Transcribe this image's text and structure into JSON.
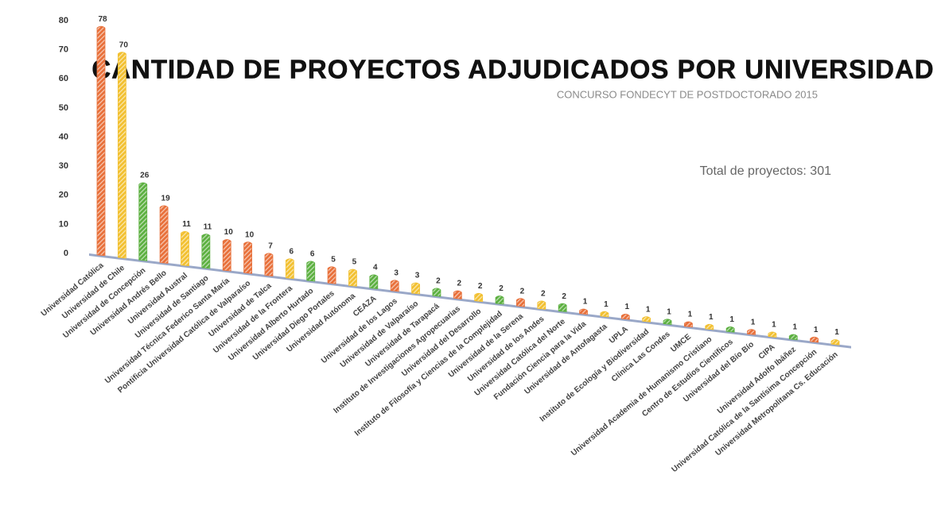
{
  "chart_data": {
    "type": "bar",
    "title": "CANTIDAD DE PROYECTOS ADJUDICADOS POR UNIVERSIDAD",
    "subtitle": "CONCURSO FONDECYT DE POSTDOCTORADO 2015",
    "annotation": "Total de proyectos: 301",
    "categories": [
      "Universidad Católica",
      "Universidad de Chile",
      "Universidad de Concepción",
      "Universidad Andrés Bello",
      "Universidad Austral",
      "Universidad de Santiago",
      "Universidad Técnica Federico Santa María",
      "Pontificia Universidad Católica de Valparaíso",
      "Universidad de Talca",
      "Universidad de la Frontera",
      "Universidad Alberto Hurtado",
      "Universidad Diego Portales",
      "Universidad Autónoma",
      "CEAZA",
      "Universidad de los Lagos",
      "Universidad de Valparaíso",
      "Universidad de Tarapacá",
      "Instituto de Investigaciones Agropecuarias",
      "Universidad del Desarrollo",
      "Instituto de Filosofía y Ciencias de la Complejidad",
      "Universidad de la Serena",
      "Universidad de los Andes",
      "Universidad Católica del Norte",
      "Fundación Ciencia para la Vida",
      "Universidad de Antofagasta",
      "UPLA",
      "Instituto de Ecología y Biodiversidad",
      "Clínica Las Condes",
      "UMCE",
      "Universidad Academia de Humanismo Cristiano",
      "Centro de Estudios Científicos",
      "Universidad del Bío Bío",
      "CIPA",
      "Universidad Adolfo Ibáñez",
      "Universidad Católica de la Santísima Concepción",
      "Universidad Metropolitana Cs. Educación"
    ],
    "values": [
      78,
      70,
      26,
      19,
      11,
      11,
      10,
      10,
      7,
      6,
      6,
      5,
      5,
      4,
      3,
      3,
      2,
      2,
      2,
      2,
      2,
      2,
      2,
      1,
      1,
      1,
      1,
      1,
      1,
      1,
      1,
      1,
      1,
      1,
      1,
      1
    ],
    "colors": [
      "#e8703a",
      "#f2c030",
      "#5cb040",
      "#e8703a",
      "#f2c030",
      "#5cb040",
      "#e8703a",
      "#e8703a",
      "#e8703a",
      "#f2c030",
      "#5cb040",
      "#e8703a",
      "#f2c030",
      "#5cb040",
      "#e8703a",
      "#f2c030",
      "#5cb040",
      "#e8703a",
      "#f2c030",
      "#5cb040",
      "#e8703a",
      "#f2c030",
      "#5cb040",
      "#e8703a",
      "#f2c030",
      "#e8703a",
      "#f2c030",
      "#5cb040",
      "#e8703a",
      "#f2c030",
      "#5cb040",
      "#e8703a",
      "#f2c030",
      "#5cb040",
      "#e8703a",
      "#f2c030"
    ],
    "ylim": [
      0,
      80
    ],
    "yticks": [
      0,
      10,
      20,
      30,
      40,
      50,
      60,
      70,
      80
    ],
    "grid": false
  }
}
